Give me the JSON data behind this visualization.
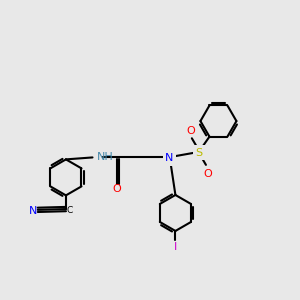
{
  "bg_color": "#e8e8e8",
  "bond_color": "#000000",
  "bond_width": 1.5,
  "atom_colors": {
    "C": "#000000",
    "N": "#0000ff",
    "NH": "#4488aa",
    "O": "#ff0000",
    "S": "#bbbb00",
    "I": "#cc00cc"
  },
  "font_size": 7.5
}
